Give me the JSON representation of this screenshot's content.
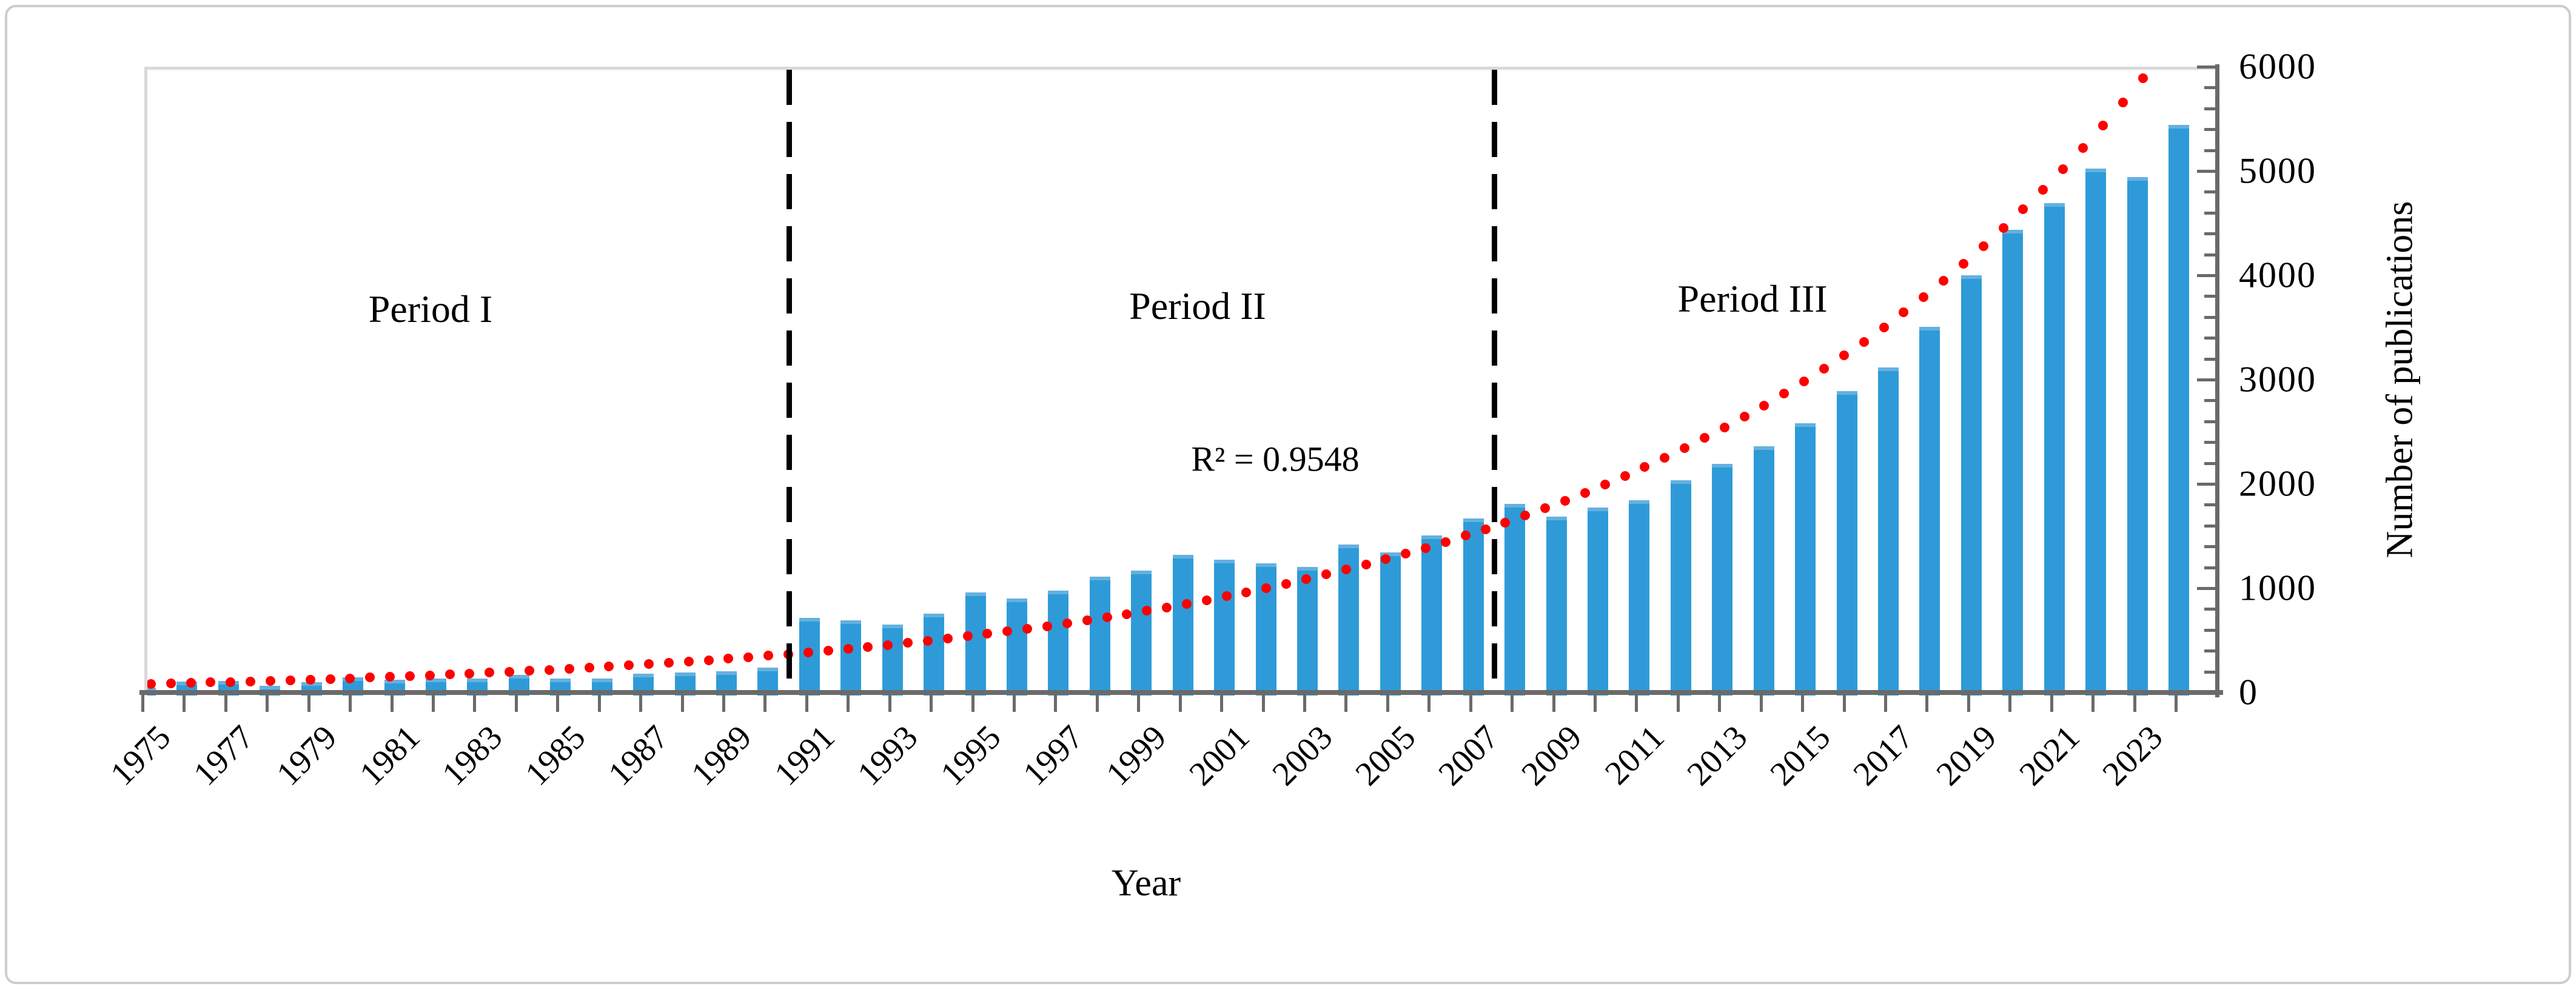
{
  "chart_data": {
    "type": "bar",
    "title": "",
    "xlabel": "Year",
    "ylabel": "Number of publications",
    "ylim": [
      0,
      6000
    ],
    "y_axis_side": "right",
    "y_major_step": 1000,
    "y_minor_step": 200,
    "grid": false,
    "legend_position": "none",
    "y_tick_labels": [
      "0",
      "1000",
      "2000",
      "3000",
      "4000",
      "5000",
      "6000"
    ],
    "x_tick_labels": [
      "1975",
      "1977",
      "1979",
      "1981",
      "1983",
      "1985",
      "1987",
      "1989",
      "1991",
      "1993",
      "1995",
      "1997",
      "1999",
      "2001",
      "2003",
      "2005",
      "2007",
      "2009",
      "2011",
      "2013",
      "2015",
      "2017",
      "2019",
      "2021",
      "2023"
    ],
    "categories": [
      1975,
      1976,
      1977,
      1978,
      1979,
      1980,
      1981,
      1982,
      1983,
      1984,
      1985,
      1986,
      1987,
      1988,
      1989,
      1990,
      1991,
      1992,
      1993,
      1994,
      1995,
      1996,
      1997,
      1998,
      1999,
      2000,
      2001,
      2002,
      2003,
      2004,
      2005,
      2006,
      2007,
      2008,
      2009,
      2010,
      2011,
      2012,
      2013,
      2014,
      2015,
      2016,
      2017,
      2018,
      2019,
      2020,
      2021,
      2022,
      2023,
      2024
    ],
    "values": [
      75,
      135,
      140,
      95,
      130,
      175,
      150,
      165,
      165,
      195,
      160,
      160,
      210,
      220,
      235,
      270,
      745,
      720,
      680,
      785,
      990,
      930,
      1005,
      1140,
      1200,
      1350,
      1300,
      1270,
      1230,
      1445,
      1375,
      1535,
      1695,
      1835,
      1715,
      1800,
      1875,
      2065,
      2220,
      2390,
      2610,
      2920,
      3145,
      3535,
      4030,
      4465,
      4720,
      5050,
      4970,
      5470
    ],
    "series_name": "Number of publications",
    "bar_color": "#2e9bd8",
    "trendline": {
      "type": "exponential",
      "style": "dotted",
      "color": "#fe0000",
      "r_squared": "0.9548",
      "start_year": 1975,
      "start_value": 110,
      "growth_rate_per_year": 0.0828
    },
    "dividers": [
      {
        "after_year": 1990,
        "style": "dashed",
        "color": "#000000"
      },
      {
        "after_year": 2007,
        "style": "dashed",
        "color": "#000000"
      }
    ],
    "annotations": {
      "period1": "Period I",
      "period2": "Period II",
      "period3": "Period III",
      "r2_label": "R² = 0.9548"
    }
  }
}
